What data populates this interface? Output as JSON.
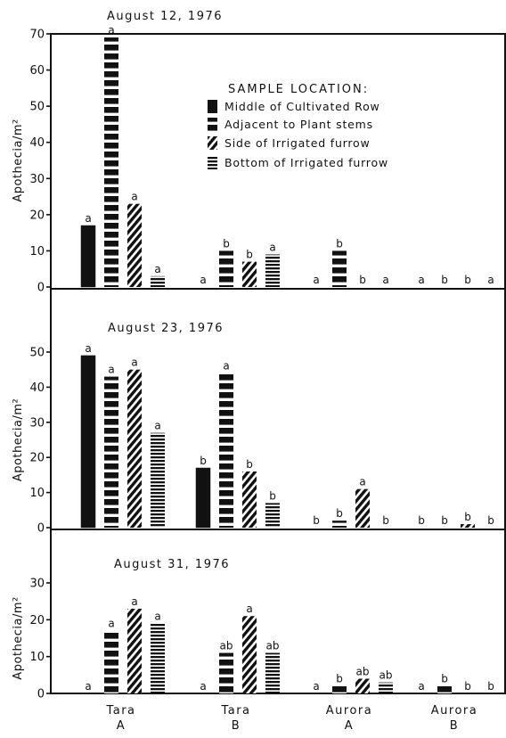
{
  "chart_data": [
    {
      "type": "bar",
      "title": "August 12, 1976",
      "ylabel": "Apothecia/m²",
      "xlabel": "",
      "ylim": [
        0,
        70
      ],
      "yticks": [
        0,
        10,
        20,
        30,
        40,
        50,
        60,
        70
      ],
      "categories": [
        [
          "Tara",
          "A"
        ],
        [
          "Tara",
          "B"
        ],
        [
          "Aurora",
          "A"
        ],
        [
          "Aurora",
          "B"
        ]
      ],
      "legend": {
        "title": "SAMPLE LOCATION:",
        "position": "top-right"
      },
      "series": [
        {
          "name": "Middle of Cultivated Row",
          "pattern": "solid",
          "values": [
            17,
            0,
            0,
            0
          ],
          "labels": [
            "a",
            "a",
            "a",
            "a"
          ]
        },
        {
          "name": "Adjacent to Plant stems",
          "pattern": "dashed-vertical",
          "values": [
            69,
            10,
            10,
            0
          ],
          "labels": [
            "a",
            "b",
            "b",
            "b"
          ]
        },
        {
          "name": "Side of Irrigated furrow",
          "pattern": "diagonal",
          "values": [
            23,
            7,
            0,
            0
          ],
          "labels": [
            "a",
            "b",
            "b",
            "b"
          ]
        },
        {
          "name": "Bottom of Irrigated furrow",
          "pattern": "horizontal-stripes",
          "values": [
            3,
            9,
            0,
            0
          ],
          "labels": [
            "a",
            "a",
            "a",
            "a"
          ]
        }
      ]
    },
    {
      "type": "bar",
      "title": "August 23, 1976",
      "ylabel": "Apothecia/m²",
      "xlabel": "",
      "ylim": [
        0,
        50
      ],
      "yticks": [
        0,
        10,
        20,
        30,
        40,
        50
      ],
      "categories": [
        [
          "Tara",
          "A"
        ],
        [
          "Tara",
          "B"
        ],
        [
          "Aurora",
          "A"
        ],
        [
          "Aurora",
          "B"
        ]
      ],
      "series": [
        {
          "name": "Middle of Cultivated Row",
          "pattern": "solid",
          "values": [
            49,
            17,
            0,
            0
          ],
          "labels": [
            "a",
            "b",
            "b",
            "b"
          ]
        },
        {
          "name": "Adjacent to Plant stems",
          "pattern": "dashed-vertical",
          "values": [
            43,
            44,
            2,
            0
          ],
          "labels": [
            "a",
            "a",
            "b",
            "b"
          ]
        },
        {
          "name": "Side of Irrigated furrow",
          "pattern": "diagonal",
          "values": [
            45,
            16,
            11,
            1
          ],
          "labels": [
            "a",
            "b",
            "a",
            "b"
          ]
        },
        {
          "name": "Bottom of Irrigated furrow",
          "pattern": "horizontal-stripes",
          "values": [
            27,
            7,
            0,
            0
          ],
          "labels": [
            "a",
            "b",
            "b",
            "b"
          ]
        }
      ]
    },
    {
      "type": "bar",
      "title": "August 31, 1976",
      "ylabel": "Apothecia/m²",
      "xlabel": "",
      "ylim": [
        0,
        30
      ],
      "yticks": [
        0,
        10,
        20,
        30
      ],
      "categories": [
        [
          "Tara",
          "A"
        ],
        [
          "Tara",
          "B"
        ],
        [
          "Aurora",
          "A"
        ],
        [
          "Aurora",
          "B"
        ]
      ],
      "series": [
        {
          "name": "Middle of Cultivated Row",
          "pattern": "solid",
          "values": [
            0,
            0,
            0,
            0
          ],
          "labels": [
            "a",
            "a",
            "a",
            "a"
          ]
        },
        {
          "name": "Adjacent to Plant stems",
          "pattern": "dashed-vertical",
          "values": [
            17,
            11,
            2,
            2
          ],
          "labels": [
            "a",
            "ab",
            "b",
            "b"
          ]
        },
        {
          "name": "Side of Irrigated furrow",
          "pattern": "diagonal",
          "values": [
            23,
            21,
            4,
            0
          ],
          "labels": [
            "a",
            "a",
            "ab",
            "b"
          ]
        },
        {
          "name": "Bottom of Irrigated furrow",
          "pattern": "horizontal-stripes",
          "values": [
            19,
            11,
            3,
            0
          ],
          "labels": [
            "a",
            "ab",
            "ab",
            "b"
          ]
        }
      ]
    }
  ],
  "colors": {
    "ink": "#111111",
    "paper": "#ffffff"
  }
}
